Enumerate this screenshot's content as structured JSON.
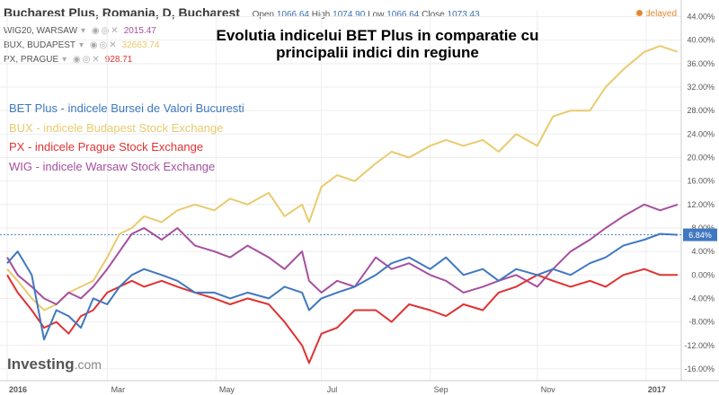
{
  "header": {
    "title": "Bucharest Plus, Romania, D, Bucharest",
    "open_label": "Open",
    "open": "1066.64",
    "high_label": "High",
    "high": "1074.90",
    "low_label": "Low",
    "low": "1066.64",
    "close_label": "Close",
    "close": "1073.43",
    "status": "delayed"
  },
  "compare": [
    {
      "name": "WIG20, WARSAW",
      "value": "2015.47",
      "color": "#a64f9e"
    },
    {
      "name": "BUX, BUDAPEST",
      "value": "32663.74",
      "color": "#e8c86a"
    },
    {
      "name": "PX, PRAGUE",
      "value": "928.71",
      "color": "#e03232"
    }
  ],
  "brand": {
    "name": "Investing",
    "suffix": ".com"
  },
  "colors": {
    "bet": "#3f78c0",
    "bux": "#e9cb6e",
    "px": "#e03232",
    "wig": "#a64f9e",
    "grid": "#eeeeee",
    "axis_text": "#555555"
  },
  "chart_data": {
    "type": "line",
    "title": "Evolutia indicelui BET Plus in comparatie cu principalii indici din regiune",
    "xlabel": "",
    "ylabel": "",
    "x_ticks": [
      "2016",
      "Mar",
      "May",
      "Jul",
      "Sep",
      "Nov",
      "2017"
    ],
    "y_ticks": [
      "44.00%",
      "40.00%",
      "36.00%",
      "32.00%",
      "28.00%",
      "24.00%",
      "20.00%",
      "16.00%",
      "12.00%",
      "8.00%",
      "4.00%",
      "0.00%",
      "-4.00%",
      "-8.00%",
      "-12.00%",
      "-16.00%"
    ],
    "y_tick_values": [
      44,
      40,
      36,
      32,
      28,
      24,
      20,
      16,
      12,
      8,
      4,
      0,
      -4,
      -8,
      -12,
      -16
    ],
    "ylim": [
      -18,
      45
    ],
    "x_range": [
      "2016-01-04",
      "2017-01-20"
    ],
    "current_marker": {
      "label": "6.84%",
      "value": 6.84
    },
    "grid": true,
    "legend_position": "top-left",
    "series": [
      {
        "name": "BET Plus - indicele Bursei de Valori Bucuresti",
        "color": "#3f78c0",
        "x": [
          "2016-01-04",
          "2016-01-10",
          "2016-01-18",
          "2016-01-25",
          "2016-02-01",
          "2016-02-08",
          "2016-02-15",
          "2016-02-22",
          "2016-03-01",
          "2016-03-08",
          "2016-03-15",
          "2016-03-22",
          "2016-04-01",
          "2016-04-10",
          "2016-04-20",
          "2016-05-01",
          "2016-05-10",
          "2016-05-20",
          "2016-06-01",
          "2016-06-10",
          "2016-06-20",
          "2016-06-24",
          "2016-07-01",
          "2016-07-10",
          "2016-07-20",
          "2016-08-01",
          "2016-08-10",
          "2016-08-20",
          "2016-09-01",
          "2016-09-10",
          "2016-09-20",
          "2016-10-01",
          "2016-10-10",
          "2016-10-20",
          "2016-11-01",
          "2016-11-10",
          "2016-11-20",
          "2016-12-01",
          "2016-12-10",
          "2016-12-20",
          "2017-01-01",
          "2017-01-10",
          "2017-01-20"
        ],
        "y": [
          2,
          4,
          0,
          -11,
          -6,
          -7,
          -9,
          -4,
          -5,
          -2,
          0,
          1,
          0,
          -1,
          -3,
          -3,
          -4,
          -3,
          -4,
          -2,
          -3,
          -6,
          -4,
          -3,
          -2,
          0,
          2,
          3,
          1,
          3,
          0,
          1,
          -1,
          1,
          0,
          1,
          0,
          2,
          3,
          5,
          6,
          7,
          6.84
        ]
      },
      {
        "name": "BUX - indicele Budapest Stock Exchange",
        "color": "#e9cb6e",
        "x": [
          "2016-01-04",
          "2016-01-10",
          "2016-01-18",
          "2016-01-25",
          "2016-02-01",
          "2016-02-08",
          "2016-02-15",
          "2016-02-22",
          "2016-03-01",
          "2016-03-08",
          "2016-03-15",
          "2016-03-22",
          "2016-04-01",
          "2016-04-10",
          "2016-04-20",
          "2016-05-01",
          "2016-05-10",
          "2016-05-20",
          "2016-06-01",
          "2016-06-10",
          "2016-06-20",
          "2016-06-24",
          "2016-07-01",
          "2016-07-10",
          "2016-07-20",
          "2016-08-01",
          "2016-08-10",
          "2016-08-20",
          "2016-09-01",
          "2016-09-10",
          "2016-09-20",
          "2016-10-01",
          "2016-10-10",
          "2016-10-20",
          "2016-11-01",
          "2016-11-10",
          "2016-11-20",
          "2016-12-01",
          "2016-12-10",
          "2016-12-20",
          "2017-01-01",
          "2017-01-10",
          "2017-01-20"
        ],
        "y": [
          1,
          -1,
          -4,
          -6,
          -5,
          -3,
          -2,
          -1,
          3,
          7,
          8,
          10,
          9,
          11,
          12,
          11,
          13,
          12,
          14,
          10,
          12,
          9,
          15,
          17,
          16,
          19,
          21,
          20,
          22,
          23,
          22,
          23,
          21,
          24,
          22,
          27,
          28,
          28,
          32,
          35,
          38,
          39,
          38
        ]
      },
      {
        "name": "PX - indicele Prague Stock Exchange",
        "color": "#e03232",
        "x": [
          "2016-01-04",
          "2016-01-10",
          "2016-01-18",
          "2016-01-25",
          "2016-02-01",
          "2016-02-08",
          "2016-02-15",
          "2016-02-22",
          "2016-03-01",
          "2016-03-08",
          "2016-03-15",
          "2016-03-22",
          "2016-04-01",
          "2016-04-10",
          "2016-04-20",
          "2016-05-01",
          "2016-05-10",
          "2016-05-20",
          "2016-06-01",
          "2016-06-10",
          "2016-06-20",
          "2016-06-24",
          "2016-07-01",
          "2016-07-10",
          "2016-07-20",
          "2016-08-01",
          "2016-08-10",
          "2016-08-20",
          "2016-09-01",
          "2016-09-10",
          "2016-09-20",
          "2016-10-01",
          "2016-10-10",
          "2016-10-20",
          "2016-11-01",
          "2016-11-10",
          "2016-11-20",
          "2016-12-01",
          "2016-12-10",
          "2016-12-20",
          "2017-01-01",
          "2017-01-10",
          "2017-01-20"
        ],
        "y": [
          0,
          -3,
          -6,
          -9,
          -8,
          -10,
          -7,
          -6,
          -3,
          -2,
          -1,
          -2,
          -1,
          -2,
          -3,
          -4,
          -5,
          -4,
          -5,
          -8,
          -12,
          -15,
          -10,
          -9,
          -6,
          -6,
          -8,
          -5,
          -6,
          -7,
          -5,
          -6,
          -3,
          -2,
          0,
          -1,
          -2,
          -1,
          -2,
          0,
          1,
          0,
          0
        ]
      },
      {
        "name": "WIG - indicele Warsaw Stock Exchange",
        "color": "#a64f9e",
        "x": [
          "2016-01-04",
          "2016-01-10",
          "2016-01-18",
          "2016-01-25",
          "2016-02-01",
          "2016-02-08",
          "2016-02-15",
          "2016-02-22",
          "2016-03-01",
          "2016-03-08",
          "2016-03-15",
          "2016-03-22",
          "2016-04-01",
          "2016-04-10",
          "2016-04-20",
          "2016-05-01",
          "2016-05-10",
          "2016-05-20",
          "2016-06-01",
          "2016-06-10",
          "2016-06-20",
          "2016-06-24",
          "2016-07-01",
          "2016-07-10",
          "2016-07-20",
          "2016-08-01",
          "2016-08-10",
          "2016-08-20",
          "2016-09-01",
          "2016-09-10",
          "2016-09-20",
          "2016-10-01",
          "2016-10-10",
          "2016-10-20",
          "2016-11-01",
          "2016-11-10",
          "2016-11-20",
          "2016-12-01",
          "2016-12-10",
          "2016-12-20",
          "2017-01-01",
          "2017-01-10",
          "2017-01-20"
        ],
        "y": [
          3,
          0,
          -2,
          -4,
          -5,
          -3,
          -4,
          -2,
          1,
          4,
          7,
          8,
          6,
          8,
          5,
          4,
          3,
          5,
          3,
          1,
          4,
          -1,
          -3,
          -1,
          -2,
          3,
          1,
          2,
          0,
          -1,
          -3,
          -2,
          -1,
          0,
          -2,
          1,
          4,
          6,
          8,
          10,
          12,
          11,
          12
        ]
      }
    ]
  }
}
